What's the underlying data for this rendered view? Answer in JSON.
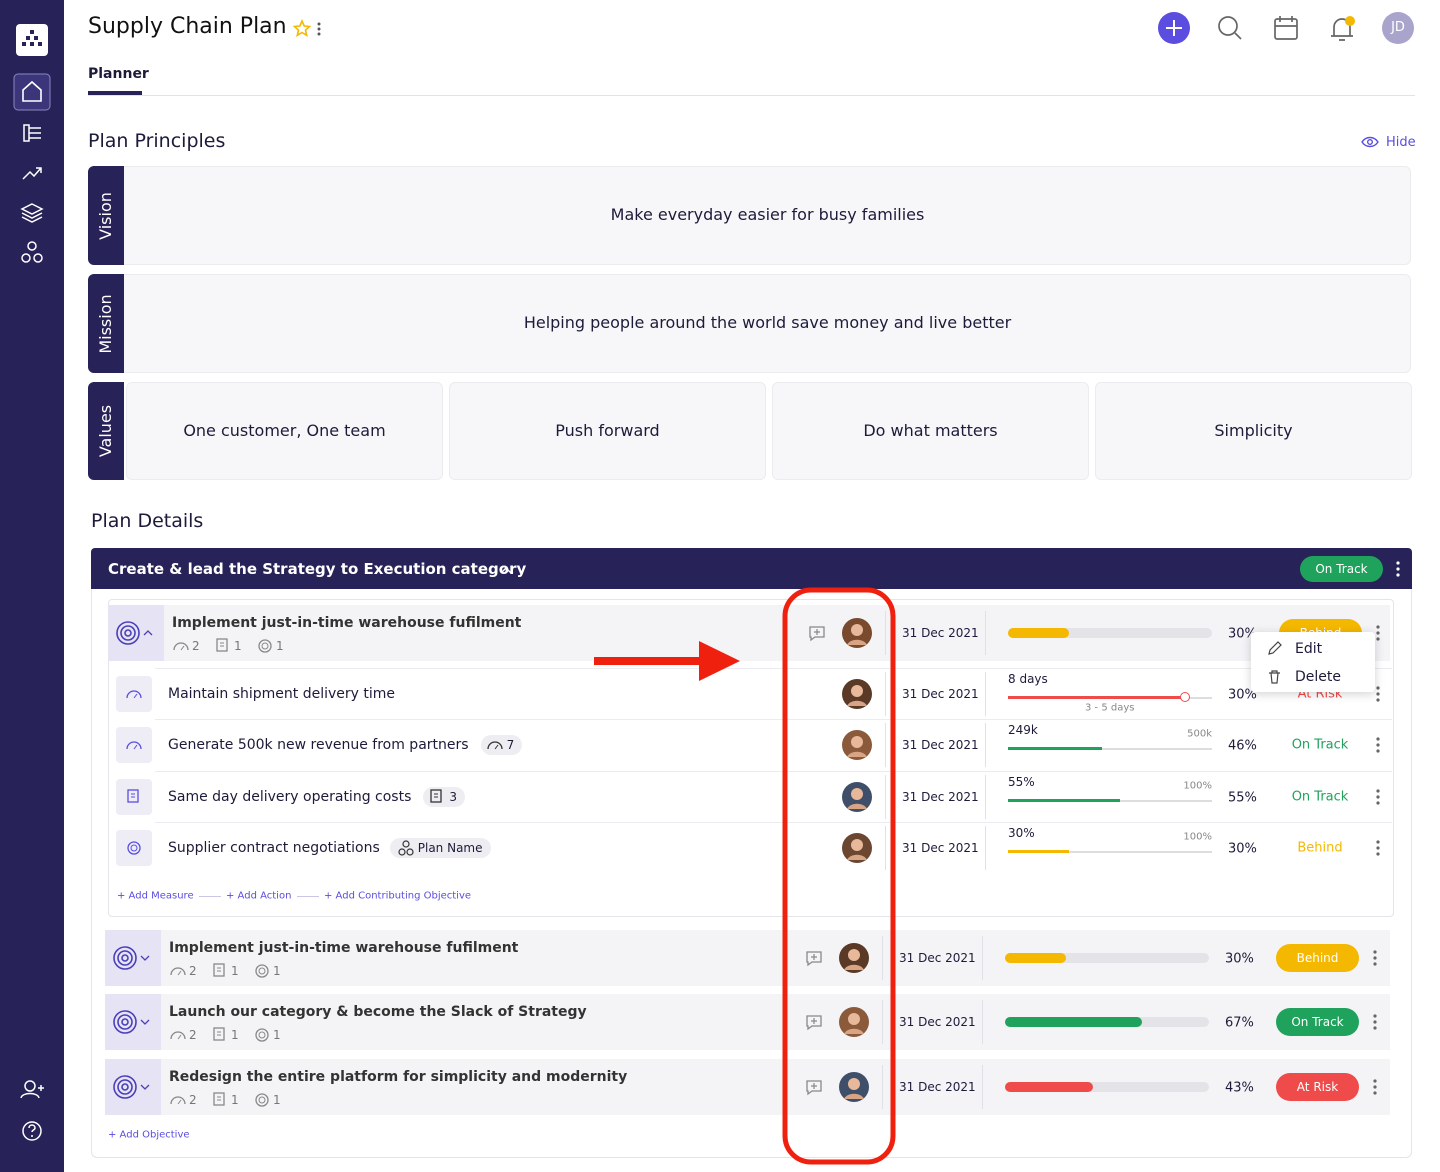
{
  "header": {
    "title": "Supply Chain Plan",
    "tab": "Planner",
    "avatar": "JD"
  },
  "principles": {
    "title": "Plan Principles",
    "hide": "Hide",
    "vision": {
      "label": "Vision",
      "text": "Make everyday easier for busy families"
    },
    "mission": {
      "label": "Mission",
      "text": "Helping people around the world save money and live better"
    },
    "values": {
      "label": "Values",
      "items": [
        "One customer, One team",
        "Push forward",
        "Do what matters",
        "Simplicity"
      ]
    }
  },
  "details": {
    "title": "Plan Details",
    "group": {
      "title": "Create & lead the Strategy to Execution category",
      "status": "On Track",
      "status_color": "#1fa35c",
      "menu": [
        "Edit",
        "Delete"
      ],
      "objectives": [
        {
          "title": "Implement just-in-time warehouse fufilment",
          "counts": [
            "2",
            "1",
            "1"
          ],
          "date": "31 Dec 2021",
          "progress": "30%",
          "status": "Behind",
          "status_color": "#f5b800",
          "items": [
            {
              "title": "Maintain shipment delivery time",
              "date": "31 Dec 2021",
              "measure": "8 days",
              "range": "3 - 5 days",
              "progress": "30%",
              "status": "At Risk",
              "status_color": "#f04b4b"
            },
            {
              "title": "Generate 500k new revenue from partners",
              "badge": "7",
              "date": "31 Dec 2021",
              "measure": "249k",
              "target": "500k",
              "progress": "46%",
              "status": "On Track",
              "status_color": "#1fa35c"
            },
            {
              "title": "Same day delivery operating costs",
              "badge": "3",
              "date": "31 Dec 2021",
              "measure": "55%",
              "target": "100%",
              "progress": "55%",
              "status": "On Track",
              "status_color": "#1fa35c"
            },
            {
              "title": "Supplier contract negotiations",
              "tag": "Plan Name",
              "date": "31 Dec 2021",
              "measure": "30%",
              "target": "100%",
              "progress": "30%",
              "status": "Behind",
              "status_color": "#f5b800"
            }
          ],
          "links": [
            "+ Add Measure",
            "+ Add Action",
            "+ Add Contributing Objective"
          ]
        },
        {
          "title": "Implement just-in-time warehouse fufilment",
          "counts": [
            "2",
            "1",
            "1"
          ],
          "date": "31 Dec 2021",
          "progress": "30%",
          "status": "Behind",
          "status_color": "#f5b800"
        },
        {
          "title": "Launch our category & become the Slack of Strategy",
          "counts": [
            "2",
            "1",
            "1"
          ],
          "date": "31 Dec 2021",
          "progress": "67%",
          "status": "On Track",
          "status_color": "#1fa35c"
        },
        {
          "title": "Redesign the entire platform for simplicity and modernity",
          "counts": [
            "2",
            "1",
            "1"
          ],
          "date": "31 Dec 2021",
          "progress": "43%",
          "status": "At Risk",
          "status_color": "#f04b4b"
        }
      ],
      "add_objective": "+ Add Objective"
    }
  }
}
